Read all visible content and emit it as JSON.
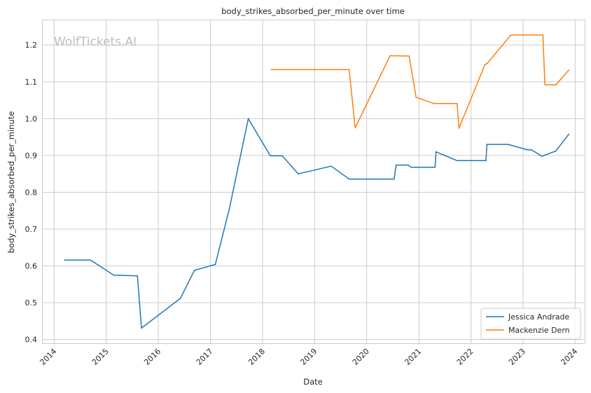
{
  "chart_data": {
    "type": "line",
    "title": "body_strikes_absorbed_per_minute over time",
    "xlabel": "Date",
    "ylabel": "body_strikes_absorbed_per_minute",
    "watermark": "WolfTickets.AI",
    "x_ticks": [
      "2014",
      "2015",
      "2016",
      "2017",
      "2018",
      "2019",
      "2020",
      "2021",
      "2022",
      "2023",
      "2024"
    ],
    "y_ticks": [
      "0.4",
      "0.5",
      "0.6",
      "0.7",
      "0.8",
      "0.9",
      "1.0",
      "1.1",
      "1.2"
    ],
    "xlim": [
      "2013-10-13",
      "2024-03-08"
    ],
    "ylim": [
      0.39,
      1.267
    ],
    "grid": true,
    "legend_position": "lower-right",
    "series": [
      {
        "name": "Jessica Andrade",
        "color": "#1f77b4",
        "points": [
          [
            "2014-03-15",
            0.616
          ],
          [
            "2014-09-13",
            0.616
          ],
          [
            "2015-02-22",
            0.575
          ],
          [
            "2015-08-08",
            0.573
          ],
          [
            "2015-09-05",
            0.431
          ],
          [
            "2016-06-04",
            0.512
          ],
          [
            "2016-09-10",
            0.588
          ],
          [
            "2017-02-04",
            0.604
          ],
          [
            "2017-05-13",
            0.755
          ],
          [
            "2017-09-23",
            1.0
          ],
          [
            "2018-02-24",
            0.899
          ],
          [
            "2018-05-19",
            0.899
          ],
          [
            "2018-09-08",
            0.85
          ],
          [
            "2019-04-27",
            0.871
          ],
          [
            "2019-08-31",
            0.836
          ],
          [
            "2020-07-11",
            0.836
          ],
          [
            "2020-07-25",
            0.874
          ],
          [
            "2020-10-17",
            0.874
          ],
          [
            "2020-11-07",
            0.868
          ],
          [
            "2021-04-24",
            0.868
          ],
          [
            "2021-05-01",
            0.91
          ],
          [
            "2021-09-25",
            0.886
          ],
          [
            "2022-04-16",
            0.886
          ],
          [
            "2022-04-23",
            0.93
          ],
          [
            "2022-09-17",
            0.93
          ],
          [
            "2023-02-04",
            0.915
          ],
          [
            "2023-02-25",
            0.916
          ],
          [
            "2023-05-13",
            0.898
          ],
          [
            "2023-08-19",
            0.912
          ],
          [
            "2023-11-18",
            0.958
          ]
        ]
      },
      {
        "name": "Mackenzie Dern",
        "color": "#ff7f0e",
        "points": [
          [
            "2018-03-03",
            1.133
          ],
          [
            "2019-08-31",
            1.133
          ],
          [
            "2019-10-12",
            0.975
          ],
          [
            "2020-06-13",
            1.171
          ],
          [
            "2020-10-24",
            1.17
          ],
          [
            "2020-12-12",
            1.058
          ],
          [
            "2021-04-17",
            1.041
          ],
          [
            "2021-09-25",
            1.041
          ],
          [
            "2021-10-09",
            0.974
          ],
          [
            "2022-04-09",
            1.147
          ],
          [
            "2022-04-23",
            1.149
          ],
          [
            "2022-10-08",
            1.227
          ],
          [
            "2023-05-20",
            1.227
          ],
          [
            "2023-06-03",
            1.092
          ],
          [
            "2023-08-19",
            1.092
          ],
          [
            "2023-11-18",
            1.132
          ]
        ]
      }
    ]
  }
}
